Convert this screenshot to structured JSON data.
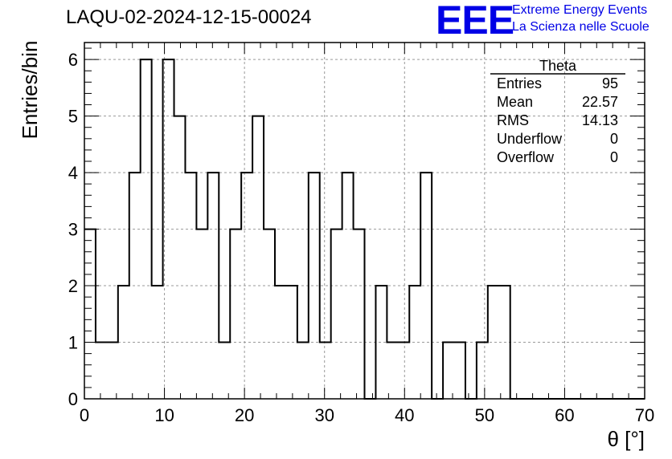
{
  "title": "LAQU-02-2024-12-15-00024",
  "logo": {
    "mark": "EEE",
    "line1": "Extreme Energy Events",
    "line2": "La Scienza nelle Scuole",
    "color": "#0000e6"
  },
  "stats": {
    "title": "Theta",
    "rows": [
      {
        "label": "Entries",
        "value": "95"
      },
      {
        "label": "Mean",
        "value": "22.57"
      },
      {
        "label": "RMS",
        "value": "14.13"
      },
      {
        "label": "Underflow",
        "value": "0"
      },
      {
        "label": "Overflow",
        "value": "0"
      }
    ]
  },
  "chart_data": {
    "type": "bar",
    "title": "LAQU-02-2024-12-15-00024",
    "xlabel": "θ [°]",
    "ylabel": "Entries/bin",
    "xlim": [
      0,
      70
    ],
    "ylim": [
      0,
      6.3
    ],
    "xticks": [
      0,
      10,
      20,
      30,
      40,
      50,
      60,
      70
    ],
    "yticks": [
      0,
      1,
      2,
      3,
      4,
      5,
      6
    ],
    "grid": true,
    "bin_width": 1.4,
    "bin_start": 0,
    "values": [
      3,
      1,
      1,
      2,
      4,
      6,
      2,
      6,
      5,
      4,
      3,
      4,
      1,
      3,
      4,
      5,
      3,
      2,
      2,
      1,
      4,
      1,
      3,
      4,
      3,
      0,
      2,
      1,
      1,
      2,
      4,
      0,
      1,
      1,
      0,
      1,
      2,
      2,
      0,
      0,
      0,
      0,
      0,
      0,
      0,
      0,
      0,
      0,
      0,
      0
    ],
    "series_color": "#000000",
    "legend_position": "top-right"
  }
}
